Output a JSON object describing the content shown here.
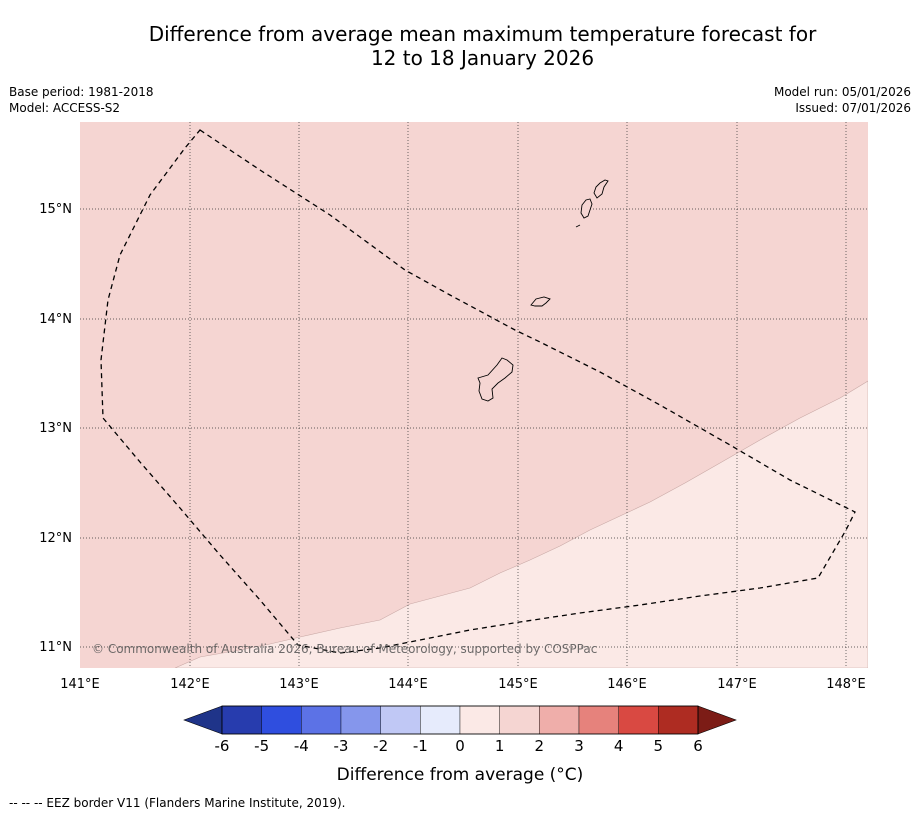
{
  "title": {
    "line1": "Difference from average mean maximum temperature forecast for",
    "line2": "12 to 18 January 2026"
  },
  "meta_left": {
    "base_period": "Base period: 1981-2018",
    "model": "Model: ACCESS-S2"
  },
  "meta_right": {
    "model_run": "Model run: 05/01/2026",
    "issued": "Issued: 07/01/2026"
  },
  "map": {
    "lat_labels": [
      "15°N",
      "14°N",
      "13°N",
      "12°N",
      "11°N"
    ],
    "lon_labels": [
      "141°E",
      "142°E",
      "143°E",
      "144°E",
      "145°E",
      "146°E",
      "147°E",
      "148°E"
    ],
    "copyright": "© Commonwealth of Australia 2026, Bureau of Meteorology, supported by COSPPac"
  },
  "colors": {
    "bin_0_1": "#fbe9e6",
    "bin_1_2": "#f5d5d2"
  },
  "colorbar": {
    "ticks": [
      "-6",
      "-5",
      "-4",
      "-3",
      "-2",
      "-1",
      "0",
      "1",
      "2",
      "3",
      "4",
      "5",
      "6"
    ],
    "label": "Difference from average (°C)",
    "colors": [
      "#273cae",
      "#2f4edf",
      "#5c72e6",
      "#8596ec",
      "#c0c8f5",
      "#e6ebfc",
      "#fbe9e6",
      "#f5d5d2",
      "#efaeaa",
      "#e6827c",
      "#d94942",
      "#ae2c22"
    ],
    "under_color": "#1f3489",
    "over_color": "#7c1c16"
  },
  "footer": "--  --  -- EEZ border V11 (Flanders Marine Institute, 2019)."
}
